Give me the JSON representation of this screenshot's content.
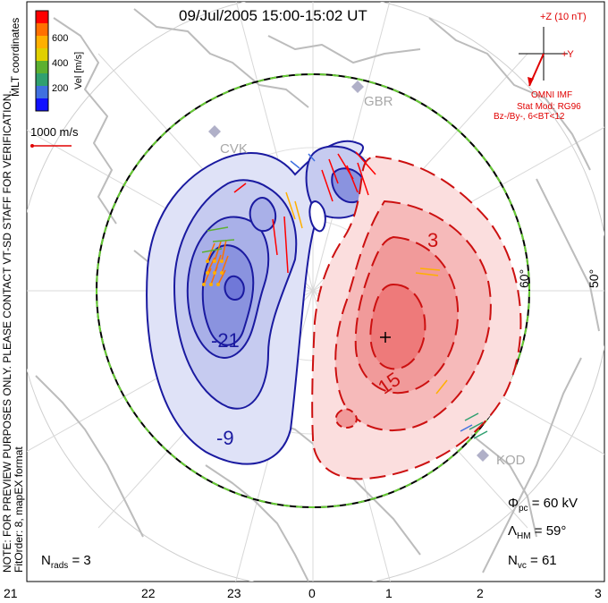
{
  "title": "09/Jul/2005 15:00-15:02 UT",
  "side_note": {
    "line1": "NOTE: FOR PREVIEW PURPOSES ONLY. PLEASE CONTACT VT-SD STAFF FOR VERIFICATION.",
    "line2": "FitOrder: 8, mapEX format"
  },
  "coordinates_label": "MLT coordinates",
  "velocity_scale": {
    "label": "Vel [m/s]",
    "ticks": [
      "600",
      "400",
      "200"
    ],
    "colors": [
      "#ff0000",
      "#ff7000",
      "#ffb000",
      "#e0d000",
      "#5cb030",
      "#30a070",
      "#4070e0",
      "#1010ff"
    ]
  },
  "reference_vector": "1000 m/s",
  "radar_labels": [
    "GBR",
    "KOD",
    "CVK"
  ],
  "imf": {
    "bz_label": "+Z (10 nT)",
    "by_label": "+Y",
    "source": "OMNI IMF",
    "model": "Stat Mod: RG96",
    "condition": "Bz-/By-, 6<BT<12"
  },
  "contour_labels": [
    "-21",
    "-9",
    "3",
    "15"
  ],
  "lat_labels": [
    "60°",
    "50°"
  ],
  "mlt_labels": [
    "21",
    "22",
    "23",
    "0",
    "1",
    "2",
    "3"
  ],
  "stats": {
    "phi_pc_sym": "Φ",
    "phi_pc_sub": "pc",
    "phi_pc_val": "= 60 kV",
    "lambda_hm_sym": "Λ",
    "lambda_hm_sub": "HM",
    "lambda_hm_val": "= 59°",
    "n_vc_sym": "N",
    "n_vc_sub": "vc",
    "n_vc_val": "= 61",
    "n_rads_sym": "N",
    "n_rads_sub": "rads",
    "n_rads_val": "= 3"
  },
  "colors": {
    "negative_contour": "#1a1aa0",
    "positive_contour": "#cc1010",
    "negative_fill": "#7078d8",
    "positive_fill": "#ee7070",
    "coastline": "#bcbcbc",
    "hmb": "#66cc33"
  }
}
